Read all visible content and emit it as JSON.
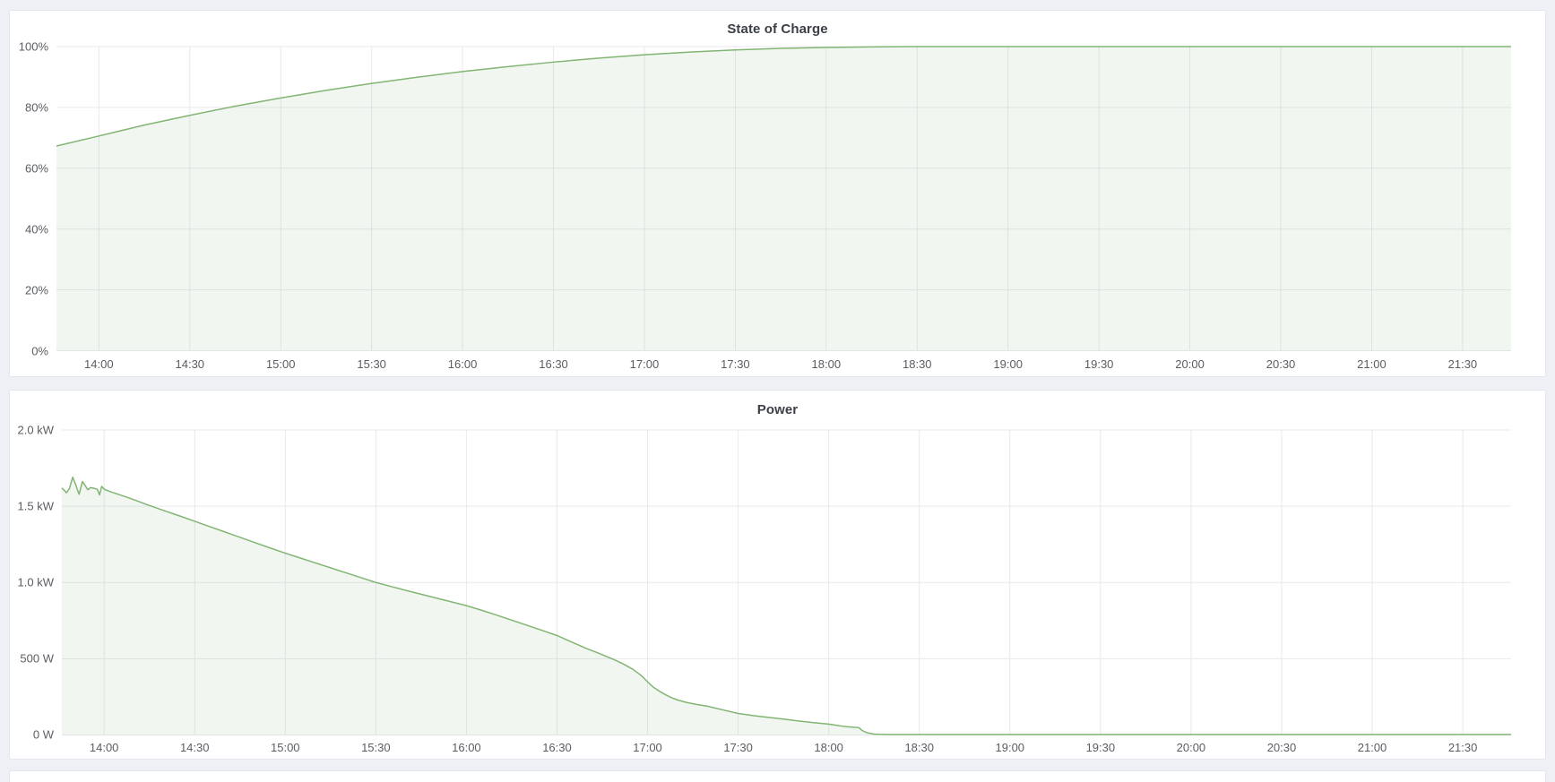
{
  "theme": {
    "page_bg": "#eef0f5",
    "panel_bg": "#ffffff",
    "panel_border": "#e3e6ee",
    "grid_color": "#e8e9ec",
    "tick_color": "#5a5d63",
    "title_color": "#3b3f46",
    "accent_green": "#82b573"
  },
  "panels": [
    {
      "title": "State of Charge"
    },
    {
      "title": "Power"
    }
  ],
  "chart_data": [
    {
      "type": "area",
      "title": "State of Charge",
      "x_type": "time",
      "x_domain_minutes": [
        826,
        1306
      ],
      "x_ticks": [
        {
          "m": 840,
          "label": "14:00"
        },
        {
          "m": 870,
          "label": "14:30"
        },
        {
          "m": 900,
          "label": "15:00"
        },
        {
          "m": 930,
          "label": "15:30"
        },
        {
          "m": 960,
          "label": "16:00"
        },
        {
          "m": 990,
          "label": "16:30"
        },
        {
          "m": 1020,
          "label": "17:00"
        },
        {
          "m": 1050,
          "label": "17:30"
        },
        {
          "m": 1080,
          "label": "18:00"
        },
        {
          "m": 1110,
          "label": "18:30"
        },
        {
          "m": 1140,
          "label": "19:00"
        },
        {
          "m": 1170,
          "label": "19:30"
        },
        {
          "m": 1200,
          "label": "20:00"
        },
        {
          "m": 1230,
          "label": "20:30"
        },
        {
          "m": 1260,
          "label": "21:00"
        },
        {
          "m": 1290,
          "label": "21:30"
        }
      ],
      "ylim": [
        0,
        100
      ],
      "y_unit": "percent",
      "y_ticks": [
        {
          "v": 0,
          "label": "0%"
        },
        {
          "v": 20,
          "label": "20%"
        },
        {
          "v": 40,
          "label": "40%"
        },
        {
          "v": 60,
          "label": "60%"
        },
        {
          "v": 80,
          "label": "80%"
        },
        {
          "v": 100,
          "label": "100%"
        }
      ],
      "grid": true,
      "legend": "none",
      "series": [
        {
          "name": "State of Charge",
          "color": "#82b573",
          "fill": "rgba(130,181,115,0.11)",
          "points": [
            [
              826,
              67.3
            ],
            [
              840,
              70.6
            ],
            [
              855,
              74.2
            ],
            [
              870,
              77.4
            ],
            [
              885,
              80.4
            ],
            [
              900,
              83.1
            ],
            [
              915,
              85.6
            ],
            [
              930,
              87.9
            ],
            [
              945,
              89.9
            ],
            [
              960,
              91.8
            ],
            [
              975,
              93.4
            ],
            [
              990,
              94.9
            ],
            [
              1005,
              96.2
            ],
            [
              1020,
              97.3
            ],
            [
              1035,
              98.2
            ],
            [
              1050,
              98.9
            ],
            [
              1065,
              99.4
            ],
            [
              1080,
              99.7
            ],
            [
              1095,
              99.9
            ],
            [
              1110,
              100
            ],
            [
              1306,
              100
            ]
          ]
        }
      ]
    },
    {
      "type": "area",
      "title": "Power",
      "x_type": "time",
      "x_domain_minutes": [
        826,
        1306
      ],
      "x_ticks": [
        {
          "m": 840,
          "label": "14:00"
        },
        {
          "m": 870,
          "label": "14:30"
        },
        {
          "m": 900,
          "label": "15:00"
        },
        {
          "m": 930,
          "label": "15:30"
        },
        {
          "m": 960,
          "label": "16:00"
        },
        {
          "m": 990,
          "label": "16:30"
        },
        {
          "m": 1020,
          "label": "17:00"
        },
        {
          "m": 1050,
          "label": "17:30"
        },
        {
          "m": 1080,
          "label": "18:00"
        },
        {
          "m": 1110,
          "label": "18:30"
        },
        {
          "m": 1140,
          "label": "19:00"
        },
        {
          "m": 1170,
          "label": "19:30"
        },
        {
          "m": 1200,
          "label": "20:00"
        },
        {
          "m": 1230,
          "label": "20:30"
        },
        {
          "m": 1260,
          "label": "21:00"
        },
        {
          "m": 1290,
          "label": "21:30"
        }
      ],
      "ylim": [
        0,
        2000
      ],
      "y_unit": "watts",
      "y_ticks": [
        {
          "v": 0,
          "label": "0 W"
        },
        {
          "v": 500,
          "label": "500 W"
        },
        {
          "v": 1000,
          "label": "1.0 kW"
        },
        {
          "v": 1500,
          "label": "1.5 kW"
        },
        {
          "v": 2000,
          "label": "2.0 kW"
        }
      ],
      "grid": true,
      "legend": "none",
      "series": [
        {
          "name": "Power",
          "color": "#82b573",
          "fill": "rgba(130,181,115,0.11)",
          "points": [
            [
              826,
              1620
            ],
            [
              827,
              1600
            ],
            [
              827.5,
              1588
            ],
            [
              828.5,
              1615
            ],
            [
              829.6,
              1690
            ],
            [
              830.5,
              1645
            ],
            [
              831.7,
              1578
            ],
            [
              832.8,
              1662
            ],
            [
              833.6,
              1640
            ],
            [
              834.6,
              1608
            ],
            [
              835.5,
              1622
            ],
            [
              836.5,
              1618
            ],
            [
              837.7,
              1612
            ],
            [
              838.5,
              1574
            ],
            [
              839.2,
              1630
            ],
            [
              840,
              1612
            ],
            [
              842,
              1596
            ],
            [
              845,
              1576
            ],
            [
              848,
              1556
            ],
            [
              851,
              1534
            ],
            [
              854,
              1512
            ],
            [
              857,
              1491
            ],
            [
              860,
              1470
            ],
            [
              865,
              1436
            ],
            [
              870,
              1401
            ],
            [
              875,
              1366
            ],
            [
              880,
              1331
            ],
            [
              885,
              1296
            ],
            [
              890,
              1261
            ],
            [
              895,
              1226
            ],
            [
              900,
              1192
            ],
            [
              905,
              1160
            ],
            [
              910,
              1128
            ],
            [
              915,
              1096
            ],
            [
              920,
              1064
            ],
            [
              925,
              1032
            ],
            [
              930,
              1000
            ],
            [
              935,
              974
            ],
            [
              940,
              948
            ],
            [
              945,
              923
            ],
            [
              950,
              898
            ],
            [
              955,
              873
            ],
            [
              960,
              848
            ],
            [
              965,
              818
            ],
            [
              970,
              786
            ],
            [
              975,
              753
            ],
            [
              980,
              720
            ],
            [
              985,
              686
            ],
            [
              990,
              652
            ],
            [
              995,
              608
            ],
            [
              1000,
              565
            ],
            [
              1003,
              542
            ],
            [
              1006,
              518
            ],
            [
              1009,
              493
            ],
            [
              1012,
              465
            ],
            [
              1015,
              432
            ],
            [
              1018,
              388
            ],
            [
              1020,
              348
            ],
            [
              1022,
              312
            ],
            [
              1024,
              286
            ],
            [
              1026,
              263
            ],
            [
              1028,
              244
            ],
            [
              1030,
              229
            ],
            [
              1033,
              213
            ],
            [
              1036,
              201
            ],
            [
              1040,
              188
            ],
            [
              1045,
              164
            ],
            [
              1050,
              141
            ],
            [
              1055,
              127
            ],
            [
              1060,
              115
            ],
            [
              1065,
              104
            ],
            [
              1070,
              92
            ],
            [
              1075,
              81
            ],
            [
              1080,
              71
            ],
            [
              1082,
              65
            ],
            [
              1084,
              59
            ],
            [
              1086,
              54
            ],
            [
              1088,
              51
            ],
            [
              1090,
              48
            ],
            [
              1091,
              30
            ],
            [
              1092,
              20
            ],
            [
              1093,
              13
            ],
            [
              1095,
              6
            ],
            [
              1097,
              4
            ],
            [
              1100,
              3
            ],
            [
              1306,
              3
            ]
          ]
        }
      ]
    }
  ]
}
